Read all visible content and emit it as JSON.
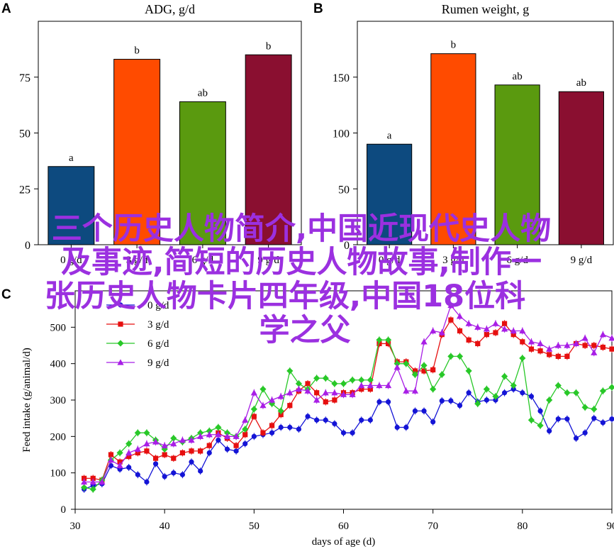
{
  "colors": {
    "bar_0": "#0d4a7f",
    "bar_3": "#ff4b00",
    "bar_6": "#5a9a0f",
    "bar_9": "#8a0f30",
    "line_0": "#1414d6",
    "line_3": "#e60f0f",
    "line_6": "#28c828",
    "line_9": "#a81ee6",
    "watermark": "#9b30e0"
  },
  "chart_data": [
    {
      "panel": "A",
      "type": "bar",
      "title": "ADG, g/d",
      "categories": [
        "0 g/d",
        "3 g/d",
        "6 g/d",
        "9 g/d"
      ],
      "values": [
        35,
        83,
        64,
        85
      ],
      "letters": [
        "a",
        "b",
        "ab",
        "b"
      ],
      "ylim": [
        0,
        100
      ],
      "yticks": [
        0,
        25,
        50,
        75
      ],
      "grid": false
    },
    {
      "panel": "B",
      "type": "bar",
      "title": "Rumen weight, g",
      "categories": [
        "0 g/d",
        "3 g/d",
        "6 g/d",
        "9 g/d"
      ],
      "values": [
        90,
        171,
        143,
        137
      ],
      "letters": [
        "a",
        "b",
        "ab",
        "ab"
      ],
      "ylim": [
        0,
        200
      ],
      "yticks": [
        0,
        50,
        100,
        150
      ],
      "grid": false
    },
    {
      "panel": "C",
      "type": "line",
      "xlabel": "days of age (d)",
      "ylabel": "Feed intake (g/animal/d)",
      "xlim": [
        30,
        90
      ],
      "ylim": [
        0,
        600
      ],
      "xticks": [
        30,
        40,
        50,
        60,
        70,
        80,
        90
      ],
      "yticks": [
        0,
        100,
        200,
        300,
        400,
        500
      ],
      "legend_position": "top-left",
      "grid": false,
      "x": [
        31,
        32,
        33,
        34,
        35,
        36,
        37,
        38,
        39,
        40,
        41,
        42,
        43,
        44,
        45,
        46,
        47,
        48,
        49,
        50,
        51,
        52,
        53,
        54,
        55,
        56,
        57,
        58,
        59,
        60,
        61,
        62,
        63,
        64,
        65,
        66,
        67,
        68,
        69,
        70,
        71,
        72,
        73,
        74,
        75,
        76,
        77,
        78,
        79,
        80,
        81,
        82,
        83,
        84,
        85,
        86,
        87,
        88,
        89,
        90
      ],
      "series": [
        {
          "name": "0 g/d",
          "marker": "circle",
          "values": [
            55,
            65,
            70,
            120,
            110,
            115,
            95,
            75,
            125,
            90,
            100,
            95,
            130,
            105,
            155,
            190,
            165,
            160,
            180,
            200,
            205,
            210,
            225,
            225,
            220,
            255,
            245,
            245,
            235,
            210,
            210,
            245,
            245,
            295,
            295,
            225,
            225,
            270,
            270,
            240,
            298,
            298,
            285,
            320,
            295,
            300,
            300,
            320,
            330,
            320,
            310,
            270,
            215,
            248,
            248,
            195,
            210,
            250,
            238,
            248
          ]
        },
        {
          "name": "3 g/d",
          "marker": "square",
          "values": [
            85,
            85,
            80,
            150,
            130,
            145,
            155,
            160,
            140,
            150,
            140,
            155,
            160,
            160,
            175,
            210,
            195,
            175,
            205,
            255,
            210,
            230,
            260,
            285,
            325,
            345,
            320,
            295,
            300,
            320,
            320,
            330,
            330,
            455,
            455,
            405,
            405,
            380,
            380,
            383,
            480,
            520,
            490,
            465,
            455,
            480,
            485,
            510,
            480,
            460,
            440,
            435,
            425,
            420,
            420,
            455,
            450,
            450,
            445,
            440
          ]
        },
        {
          "name": "6 g/d",
          "marker": "diamond",
          "values": [
            60,
            55,
            80,
            135,
            155,
            180,
            210,
            210,
            190,
            165,
            195,
            185,
            195,
            210,
            215,
            225,
            210,
            200,
            220,
            275,
            330,
            290,
            270,
            380,
            345,
            330,
            360,
            360,
            345,
            345,
            355,
            355,
            355,
            465,
            465,
            400,
            400,
            370,
            395,
            330,
            370,
            420,
            420,
            380,
            290,
            330,
            310,
            365,
            340,
            415,
            245,
            230,
            300,
            340,
            320,
            320,
            280,
            275,
            325,
            335
          ]
        },
        {
          "name": "9 g/d",
          "marker": "triangle",
          "values": [
            75,
            75,
            75,
            135,
            120,
            155,
            165,
            180,
            185,
            175,
            180,
            190,
            190,
            200,
            205,
            205,
            200,
            200,
            245,
            320,
            285,
            300,
            310,
            320,
            330,
            325,
            300,
            320,
            320,
            315,
            315,
            340,
            340,
            340,
            340,
            390,
            325,
            325,
            460,
            490,
            485,
            560,
            530,
            510,
            500,
            495,
            510,
            495,
            490,
            490,
            460,
            455,
            440,
            450,
            450,
            455,
            470,
            430,
            480,
            470
          ]
        }
      ]
    }
  ],
  "watermark": {
    "line1": "三个历史人物简介,中国近现代史人物",
    "line2": "及事迹,简短的历史人物故事,制作一",
    "line3": "张历史人物卡片四年级,中国18位科",
    "line4": "学之父"
  }
}
